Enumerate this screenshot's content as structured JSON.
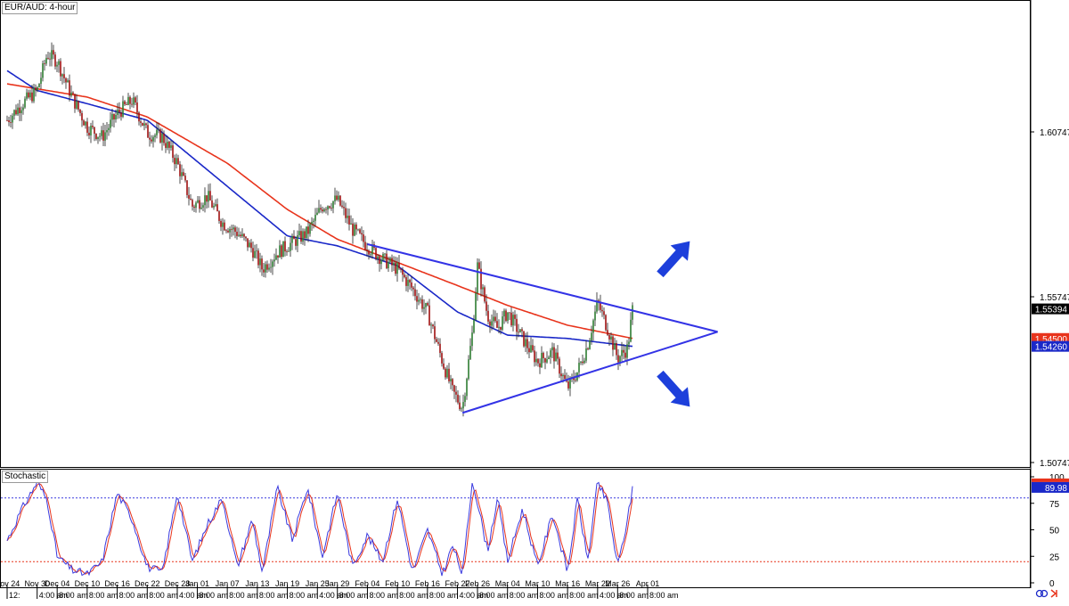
{
  "symbol_label": "EUR/AUD: 4-hour",
  "stoch_label": "Stochastic",
  "colors": {
    "bull": "#2e7d32",
    "bear": "#a01010",
    "sma_red": "#e8341c",
    "sma_blue": "#1a28c8",
    "triangle": "#3333e6",
    "arrow": "#1d3fdb",
    "stoch_main": "#3a3adf",
    "stoch_signal": "#e8341c",
    "last_price_bg": "#000000",
    "red_badge": "#e8341c",
    "blue_badge": "#1a28c8"
  },
  "chart_data": [
    {
      "type": "candlestick",
      "title": "EUR/AUD: 4-hour",
      "ylim": [
        1.495,
        1.64
      ],
      "y_ticks": [
        "1.60747",
        "1.55747",
        "1.50747"
      ],
      "x_ticks": [
        {
          "date": "Nov 24",
          "time": "12:"
        },
        {
          "date": "Nov 30",
          "time": "4:00 am"
        },
        {
          "date": "Dec 04",
          "time": "8:00 am"
        },
        {
          "date": "Dec 10",
          "time": "8:00 am"
        },
        {
          "date": "Dec 16",
          "time": "8:00 am"
        },
        {
          "date": "Dec 22",
          "time": "8:00 am"
        },
        {
          "date": "Dec 28",
          "time": "4:00 am"
        },
        {
          "date": "Jan 01",
          "time": "8:00 am"
        },
        {
          "date": "Jan 07",
          "time": "8:00 am"
        },
        {
          "date": "Jan 13",
          "time": "8:00 am"
        },
        {
          "date": "Jan 19",
          "time": "8:00 am"
        },
        {
          "date": "Jan 25",
          "time": "4:00 am"
        },
        {
          "date": "Jan 29",
          "time": "8:00 am"
        },
        {
          "date": "Feb 04",
          "time": "8:00 am"
        },
        {
          "date": "Feb 10",
          "time": "8:00 am"
        },
        {
          "date": "Feb 16",
          "time": "8:00 am"
        },
        {
          "date": "Feb 22",
          "time": "4:00 am"
        },
        {
          "date": "Feb 26",
          "time": "8:00 am"
        },
        {
          "date": "Mar 04",
          "time": "8:00 am"
        },
        {
          "date": "Mar 10",
          "time": "8:00 am"
        },
        {
          "date": "Mar 16",
          "time": "8:00 am"
        },
        {
          "date": "Mar 22",
          "time": "4:00 am"
        },
        {
          "date": "Mar 26",
          "time": "8:00 am"
        },
        {
          "date": "Apr 01",
          "time": "8:00 am"
        }
      ],
      "last_price": "1.55394",
      "sma_red_value": "1.54500",
      "sma_blue_value": "1.54260",
      "price_path": [
        {
          "date": "Nov 24",
          "close": 1.611
        },
        {
          "date": "Nov 27",
          "close": 1.616
        },
        {
          "date": "Nov 30",
          "close": 1.62
        },
        {
          "date": "Dec 02",
          "close": 1.631
        },
        {
          "date": "Dec 04",
          "close": 1.629
        },
        {
          "date": "Dec 07",
          "close": 1.618
        },
        {
          "date": "Dec 10",
          "close": 1.609
        },
        {
          "date": "Dec 13",
          "close": 1.606
        },
        {
          "date": "Dec 16",
          "close": 1.613
        },
        {
          "date": "Dec 19",
          "close": 1.617
        },
        {
          "date": "Dec 22",
          "close": 1.607
        },
        {
          "date": "Dec 25",
          "close": 1.606
        },
        {
          "date": "Dec 28",
          "close": 1.598
        },
        {
          "date": "Dec 31",
          "close": 1.585
        },
        {
          "date": "Jan 03",
          "close": 1.588
        },
        {
          "date": "Jan 06",
          "close": 1.58
        },
        {
          "date": "Jan 09",
          "close": 1.577
        },
        {
          "date": "Jan 12",
          "close": 1.572
        },
        {
          "date": "Jan 14",
          "close": 1.566
        },
        {
          "date": "Jan 17",
          "close": 1.571
        },
        {
          "date": "Jan 20",
          "close": 1.574
        },
        {
          "date": "Jan 23",
          "close": 1.577
        },
        {
          "date": "Jan 26",
          "close": 1.585
        },
        {
          "date": "Jan 29",
          "close": 1.587
        },
        {
          "date": "Feb 01",
          "close": 1.578
        },
        {
          "date": "Feb 04",
          "close": 1.573
        },
        {
          "date": "Feb 07",
          "close": 1.569
        },
        {
          "date": "Feb 10",
          "close": 1.566
        },
        {
          "date": "Feb 13",
          "close": 1.56
        },
        {
          "date": "Feb 16",
          "close": 1.553
        },
        {
          "date": "Feb 19",
          "close": 1.538
        },
        {
          "date": "Feb 21",
          "close": 1.529
        },
        {
          "date": "Feb 23",
          "close": 1.524
        },
        {
          "date": "Feb 25",
          "close": 1.547
        },
        {
          "date": "Feb 26",
          "close": 1.567
        },
        {
          "date": "Feb 28",
          "close": 1.552
        },
        {
          "date": "Mar 02",
          "close": 1.548
        },
        {
          "date": "Mar 04",
          "close": 1.553
        },
        {
          "date": "Mar 07",
          "close": 1.545
        },
        {
          "date": "Mar 10",
          "close": 1.538
        },
        {
          "date": "Mar 13",
          "close": 1.541
        },
        {
          "date": "Mar 16",
          "close": 1.53
        },
        {
          "date": "Mar 18",
          "close": 1.535
        },
        {
          "date": "Mar 20",
          "close": 1.543
        },
        {
          "date": "Mar 22",
          "close": 1.556
        },
        {
          "date": "Mar 24",
          "close": 1.548
        },
        {
          "date": "Mar 26",
          "close": 1.539
        },
        {
          "date": "Mar 28",
          "close": 1.542
        },
        {
          "date": "Mar 29",
          "close": 1.554
        }
      ],
      "sma_red_path": [
        {
          "date": "Nov 24",
          "value": 1.622
        },
        {
          "date": "Dec 10",
          "value": 1.618
        },
        {
          "date": "Dec 22",
          "value": 1.612
        },
        {
          "date": "Jan 07",
          "value": 1.598
        },
        {
          "date": "Jan 19",
          "value": 1.584
        },
        {
          "date": "Jan 29",
          "value": 1.575
        },
        {
          "date": "Feb 10",
          "value": 1.568
        },
        {
          "date": "Feb 22",
          "value": 1.561
        },
        {
          "date": "Mar 04",
          "value": 1.555
        },
        {
          "date": "Mar 16",
          "value": 1.549
        },
        {
          "date": "Mar 29",
          "value": 1.545
        }
      ],
      "sma_blue_path": [
        {
          "date": "Nov 24",
          "value": 1.626
        },
        {
          "date": "Nov 30",
          "value": 1.62
        },
        {
          "date": "Dec 10",
          "value": 1.616
        },
        {
          "date": "Dec 22",
          "value": 1.611
        },
        {
          "date": "Jan 07",
          "value": 1.591
        },
        {
          "date": "Jan 19",
          "value": 1.576
        },
        {
          "date": "Jan 29",
          "value": 1.573
        },
        {
          "date": "Feb 10",
          "value": 1.567
        },
        {
          "date": "Feb 22",
          "value": 1.553
        },
        {
          "date": "Mar 04",
          "value": 1.546
        },
        {
          "date": "Mar 16",
          "value": 1.545
        },
        {
          "date": "Mar 29",
          "value": 1.5426
        }
      ],
      "triangle": {
        "upper": [
          {
            "date": "Feb 04",
            "value": 1.5735
          },
          {
            "date": "Apr 15",
            "value": 1.547
          }
        ],
        "lower": [
          {
            "date": "Feb 23",
            "value": 1.5225
          },
          {
            "date": "Apr 15",
            "value": 1.547
          }
        ]
      }
    },
    {
      "type": "line",
      "title": "Stochastic",
      "ylim": [
        0,
        100
      ],
      "y_ticks": [
        100,
        75,
        50,
        25,
        0
      ],
      "levels": [
        80,
        20
      ],
      "last_value": "89.98",
      "main_path": [
        {
          "date": "Nov 24",
          "value": 40
        },
        {
          "date": "Nov 27",
          "value": 70
        },
        {
          "date": "Nov 30",
          "value": 95
        },
        {
          "date": "Dec 02",
          "value": 78
        },
        {
          "date": "Dec 04",
          "value": 25
        },
        {
          "date": "Dec 07",
          "value": 12
        },
        {
          "date": "Dec 10",
          "value": 8
        },
        {
          "date": "Dec 13",
          "value": 20
        },
        {
          "date": "Dec 16",
          "value": 85
        },
        {
          "date": "Dec 19",
          "value": 60
        },
        {
          "date": "Dec 22",
          "value": 15
        },
        {
          "date": "Dec 25",
          "value": 10
        },
        {
          "date": "Dec 28",
          "value": 85
        },
        {
          "date": "Dec 31",
          "value": 20
        },
        {
          "date": "Jan 03",
          "value": 55
        },
        {
          "date": "Jan 06",
          "value": 80
        },
        {
          "date": "Jan 09",
          "value": 15
        },
        {
          "date": "Jan 12",
          "value": 60
        },
        {
          "date": "Jan 14",
          "value": 10
        },
        {
          "date": "Jan 17",
          "value": 90
        },
        {
          "date": "Jan 20",
          "value": 40
        },
        {
          "date": "Jan 23",
          "value": 90
        },
        {
          "date": "Jan 26",
          "value": 25
        },
        {
          "date": "Jan 29",
          "value": 85
        },
        {
          "date": "Feb 01",
          "value": 15
        },
        {
          "date": "Feb 04",
          "value": 45
        },
        {
          "date": "Feb 07",
          "value": 20
        },
        {
          "date": "Feb 10",
          "value": 80
        },
        {
          "date": "Feb 13",
          "value": 10
        },
        {
          "date": "Feb 16",
          "value": 50
        },
        {
          "date": "Feb 19",
          "value": 8
        },
        {
          "date": "Feb 21",
          "value": 35
        },
        {
          "date": "Feb 23",
          "value": 8
        },
        {
          "date": "Feb 25",
          "value": 98
        },
        {
          "date": "Feb 28",
          "value": 30
        },
        {
          "date": "Mar 02",
          "value": 80
        },
        {
          "date": "Mar 04",
          "value": 20
        },
        {
          "date": "Mar 07",
          "value": 70
        },
        {
          "date": "Mar 10",
          "value": 15
        },
        {
          "date": "Mar 13",
          "value": 65
        },
        {
          "date": "Mar 16",
          "value": 10
        },
        {
          "date": "Mar 18",
          "value": 80
        },
        {
          "date": "Mar 20",
          "value": 20
        },
        {
          "date": "Mar 22",
          "value": 95
        },
        {
          "date": "Mar 24",
          "value": 75
        },
        {
          "date": "Mar 26",
          "value": 15
        },
        {
          "date": "Mar 28",
          "value": 60
        },
        {
          "date": "Mar 29",
          "value": 90
        }
      ]
    }
  ]
}
